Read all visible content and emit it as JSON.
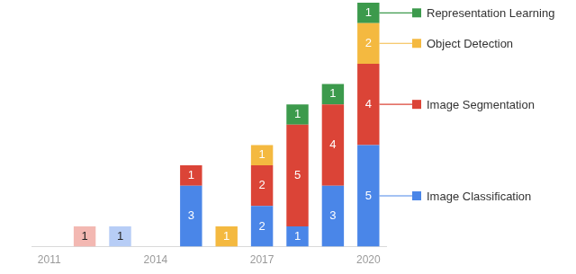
{
  "chart_data": {
    "type": "bar",
    "categories": [
      "2011",
      null,
      null,
      "2014",
      null,
      null,
      "2017",
      null,
      null,
      "2020"
    ],
    "series": [
      {
        "name": "Image Classification",
        "color": "#4a86e8",
        "colors": [
          "#4a86e8",
          "#4a86e8",
          "#b7cdf6",
          "#4a86e8",
          "#4a86e8",
          "#4a86e8",
          "#4a86e8",
          "#4a86e8",
          "#4a86e8",
          "#4a86e8"
        ],
        "values": [
          null,
          null,
          1,
          null,
          3,
          null,
          2,
          1,
          3,
          5
        ]
      },
      {
        "name": "Image Segmentation",
        "color": "#db4437",
        "colors": [
          "#db4437",
          "#f3b8b2",
          "#db4437",
          "#db4437",
          "#db4437",
          "#db4437",
          "#db4437",
          "#db4437",
          "#db4437",
          "#db4437"
        ],
        "values": [
          null,
          1,
          null,
          null,
          1,
          null,
          2,
          5,
          4,
          4
        ]
      },
      {
        "name": "Object Detection",
        "color": "#f4b940",
        "colors": [
          "#f4b940",
          "#f4b940",
          "#f4b940",
          "#f4b940",
          "#f4b940",
          "#f4b940",
          "#f4b940",
          "#f4b940",
          "#f4b940",
          "#f4b940"
        ],
        "values": [
          null,
          null,
          null,
          null,
          null,
          1,
          1,
          null,
          null,
          2
        ]
      },
      {
        "name": "Representation Learning",
        "color": "#3c9a4c",
        "colors": [
          "#3c9a4c",
          "#3c9a4c",
          "#3c9a4c",
          "#3c9a4c",
          "#3c9a4c",
          "#3c9a4c",
          "#3c9a4c",
          "#3c9a4c",
          "#3c9a4c",
          "#3c9a4c"
        ],
        "values": [
          null,
          null,
          null,
          null,
          null,
          null,
          null,
          1,
          1,
          1
        ]
      }
    ],
    "ylim": [
      0,
      12
    ],
    "stacked": true,
    "data_labels": true,
    "legend": "right",
    "grid": false,
    "tick_labels": "x"
  }
}
